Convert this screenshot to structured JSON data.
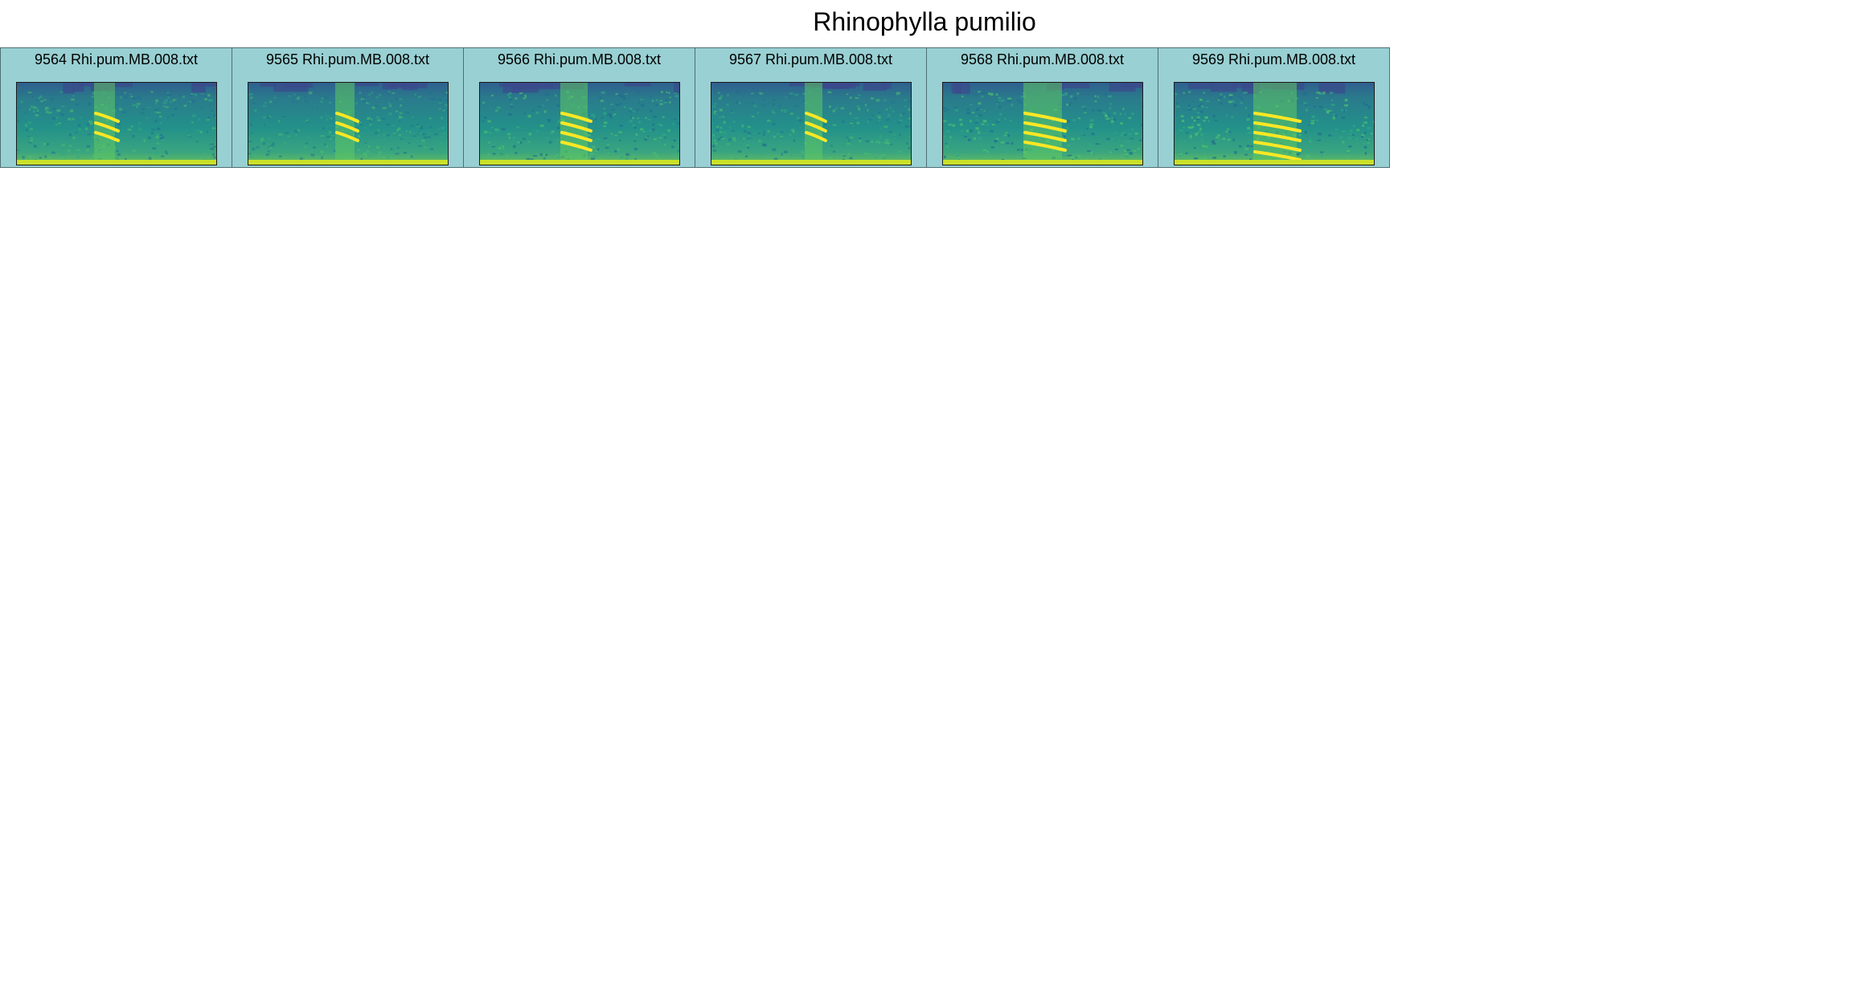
{
  "title": "Rhinophylla pumilio",
  "colors": {
    "panel_bg": "#99d0d3",
    "panel_border": "#4f6f73",
    "spectrogram_low": "#3a4a8c",
    "spectrogram_mid": "#21918c",
    "spectrogram_high": "#fde725"
  },
  "panels": [
    {
      "label": "9564 Rhi.pum.MB.008.txt"
    },
    {
      "label": "9565 Rhi.pum.MB.008.txt"
    },
    {
      "label": "9566 Rhi.pum.MB.008.txt"
    },
    {
      "label": "9567 Rhi.pum.MB.008.txt"
    },
    {
      "label": "9568 Rhi.pum.MB.008.txt"
    },
    {
      "label": "9569 Rhi.pum.MB.008.txt"
    }
  ]
}
